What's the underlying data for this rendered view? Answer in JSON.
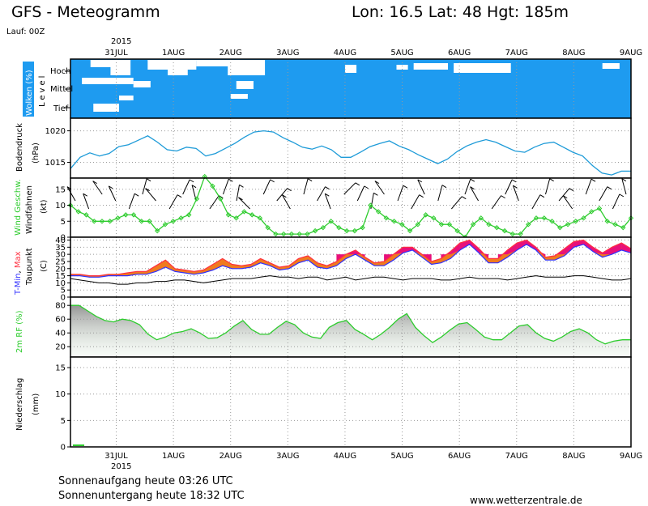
{
  "header": {
    "title": "GFS - Meteogramm",
    "location": "Lon: 16.5 Lat: 48 Hgt: 185m",
    "run": "Lauf: 00Z"
  },
  "footer": {
    "sunrise": "Sonnenaufgang heute 03:26 UTC",
    "sunset": "Sonnenuntergang heute 18:32 UTC",
    "website": "www.wetterzentrale.de"
  },
  "colors": {
    "cloud_bg": "#1e9bf0",
    "pressure": "#1e9bd8",
    "wind": "#2ecc2e",
    "tmin": "#3030ff",
    "tmax": "#ff3040",
    "temp_fill_low": "#f07a1e",
    "temp_fill_high": "#e8107a",
    "dew": "#000000",
    "rh": "#2ecc2e"
  },
  "chart_data": {
    "type": "line",
    "x_year": "2015",
    "x_ticks": [
      "31JUL",
      "1AUG",
      "2AUG",
      "3AUG",
      "4AUG",
      "5AUG",
      "6AUG",
      "7AUG",
      "8AUG",
      "9AUG"
    ],
    "x_range_days": [
      -0.8,
      9.0
    ],
    "panels": {
      "clouds": {
        "ylabel": "Wolken (%)",
        "side_label": "Level",
        "levels": [
          "Hoch",
          "Mittel",
          "Tief"
        ]
      },
      "pressure": {
        "ylabel": "Bodendruck",
        "unit": "(hPa)",
        "yticks": [
          1015,
          1020
        ],
        "ylim": [
          1012.5,
          1022
        ],
        "values": [
          1014.0,
          1015.8,
          1016.5,
          1016.0,
          1016.4,
          1017.5,
          1017.8,
          1018.5,
          1019.2,
          1018.2,
          1017.0,
          1016.8,
          1017.4,
          1017.2,
          1016.0,
          1016.4,
          1017.2,
          1018.0,
          1019.0,
          1019.8,
          1020.0,
          1019.8,
          1018.9,
          1018.2,
          1017.4,
          1017.1,
          1017.6,
          1017.0,
          1015.8,
          1015.8,
          1016.6,
          1017.5,
          1018.0,
          1018.4,
          1017.6,
          1017.0,
          1016.2,
          1015.5,
          1014.8,
          1015.5,
          1016.7,
          1017.6,
          1018.2,
          1018.6,
          1018.2,
          1017.5,
          1016.8,
          1016.6,
          1017.4,
          1018.0,
          1018.2,
          1017.4,
          1016.6,
          1016.0,
          1014.5,
          1013.3,
          1013.0,
          1013.6,
          1013.6
        ]
      },
      "wind": {
        "ylabel": "Wind Geschw.",
        "ylabel2": "Windfahnen",
        "unit": "(kt)",
        "yticks": [
          0,
          5,
          10,
          15
        ],
        "ylim": [
          0,
          18.5
        ],
        "speed": [
          10,
          8,
          7,
          5,
          5,
          5,
          6,
          7,
          7,
          5,
          5,
          2,
          4,
          5,
          6,
          7,
          12,
          19,
          16,
          12,
          7,
          6,
          8,
          7,
          6,
          3,
          1,
          1,
          1,
          1,
          1,
          2,
          3,
          5,
          3,
          2,
          2,
          3,
          10,
          8,
          6,
          5,
          4,
          2,
          4,
          7,
          6,
          4,
          4,
          2,
          0,
          4,
          6,
          4,
          3,
          2,
          1,
          1,
          4,
          6,
          6,
          5,
          3,
          4,
          5,
          6,
          8,
          9,
          5,
          4,
          3,
          6
        ]
      },
      "temperature": {
        "ylabel_min": "T-Min",
        "ylabel_max": "Max",
        "ylabel2": "Taupunkt",
        "unit": "(C)",
        "yticks": [
          0,
          5,
          10,
          15,
          20,
          25,
          30,
          35,
          40
        ],
        "ylim": [
          0,
          42
        ],
        "tmin": [
          15,
          15,
          14,
          14,
          15,
          15,
          15,
          16,
          16,
          18,
          21,
          18,
          17,
          16,
          17,
          19,
          22,
          20,
          20,
          21,
          24,
          22,
          19,
          20,
          24,
          26,
          21,
          20,
          22,
          27,
          30,
          26,
          22,
          22,
          26,
          31,
          33,
          28,
          23,
          24,
          27,
          33,
          37,
          31,
          24,
          24,
          28,
          33,
          37,
          33,
          26,
          26,
          29,
          35,
          37,
          32,
          28,
          30,
          33,
          31
        ],
        "tmax": [
          16,
          16,
          15,
          15,
          16,
          16,
          17,
          18,
          18,
          22,
          26,
          20,
          19,
          18,
          19,
          23,
          27,
          23,
          22,
          23,
          27,
          24,
          21,
          22,
          27,
          29,
          24,
          22,
          25,
          30,
          33,
          28,
          24,
          25,
          30,
          35,
          35,
          30,
          25,
          27,
          32,
          38,
          40,
          34,
          27,
          27,
          33,
          38,
          40,
          35,
          28,
          29,
          34,
          39,
          40,
          35,
          31,
          35,
          38,
          34
        ],
        "dew": [
          13,
          12,
          11,
          10,
          10,
          9,
          9,
          10,
          10,
          11,
          11,
          12,
          12,
          11,
          10,
          11,
          12,
          13,
          13,
          13,
          14,
          15,
          14,
          14,
          13,
          14,
          14,
          12,
          13,
          14,
          12,
          13,
          14,
          14,
          13,
          12,
          13,
          13,
          13,
          12,
          12,
          13,
          14,
          13,
          13,
          13,
          12,
          13,
          14,
          15,
          14,
          14,
          14,
          15,
          15,
          14,
          13,
          12,
          12,
          13
        ]
      },
      "humidity": {
        "ylabel": "2m RF (%)",
        "yticks": [
          20,
          40,
          60,
          80
        ],
        "ylim": [
          5,
          92
        ],
        "values": [
          80,
          80,
          72,
          64,
          58,
          56,
          60,
          58,
          52,
          38,
          30,
          34,
          40,
          42,
          46,
          40,
          32,
          33,
          40,
          50,
          58,
          45,
          38,
          38,
          48,
          57,
          52,
          40,
          34,
          32,
          48,
          55,
          58,
          45,
          38,
          30,
          38,
          48,
          60,
          68,
          48,
          36,
          26,
          34,
          44,
          53,
          55,
          45,
          34,
          30,
          30,
          40,
          50,
          52,
          40,
          32,
          28,
          34,
          42,
          46,
          40,
          30,
          24,
          28,
          30,
          30
        ]
      },
      "precipitation": {
        "ylabel": "Niederschlag",
        "unit": "(mm)",
        "yticks": [
          0,
          5,
          10,
          15
        ],
        "ylim": [
          0,
          17
        ]
      }
    }
  }
}
